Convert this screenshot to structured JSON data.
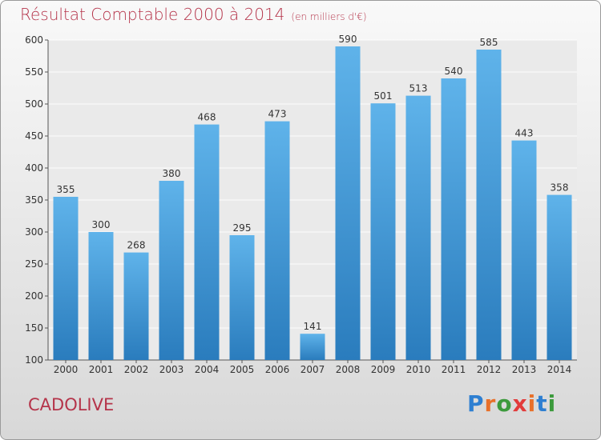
{
  "title": "Résultat Comptable 2000 à 2014",
  "subtitle": "(en milliers d'€)",
  "commune": "CADOLIVE",
  "logo": "Proxiti",
  "colors": {
    "title": "#b5344a",
    "bar_top": "#5fb3ea",
    "bar_bottom": "#2a7cbd",
    "logo": [
      "#2e7fd1",
      "#e8702a",
      "#3c9a3c",
      "#e23b3b",
      "#e8702a",
      "#2e7fd1",
      "#3c9a3c"
    ]
  },
  "chart_data": {
    "type": "bar",
    "categories": [
      "2000",
      "2001",
      "2002",
      "2003",
      "2004",
      "2005",
      "2006",
      "2007",
      "2008",
      "2009",
      "2010",
      "2011",
      "2012",
      "2013",
      "2014"
    ],
    "values": [
      355,
      300,
      268,
      380,
      468,
      295,
      473,
      141,
      590,
      501,
      513,
      540,
      585,
      443,
      358
    ],
    "ylim": [
      100,
      600
    ],
    "yticks": [
      100,
      150,
      200,
      250,
      300,
      350,
      400,
      450,
      500,
      550,
      600
    ],
    "grid": true,
    "data_labels": true
  }
}
